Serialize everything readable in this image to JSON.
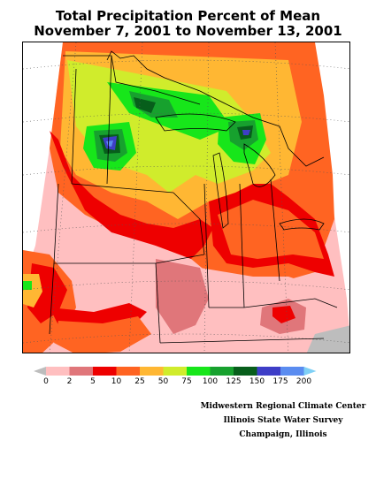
{
  "title": {
    "line1": "Total Precipitation Percent of Mean",
    "line2": "November 7, 2001 to November 13, 2001"
  },
  "legend": {
    "labels": [
      "0",
      "2",
      "5",
      "10",
      "25",
      "50",
      "75",
      "100",
      "125",
      "150",
      "175",
      "200"
    ],
    "colors": [
      "#bdbdbd",
      "#ffbfc0",
      "#e0767a",
      "#ee0000",
      "#ff6422",
      "#ffb733",
      "#d0ec2c",
      "#17e61a",
      "#17a12e",
      "#075e1b",
      "#3e3ec7",
      "#5a8cf0",
      "#7fd0f6"
    ]
  },
  "map": {
    "region": "Midwestern United States"
  },
  "credits": {
    "line1": "Midwestern Regional Climate Center",
    "line2": "Illinois State Water Survey",
    "line3": "Champaign, Illinois"
  }
}
